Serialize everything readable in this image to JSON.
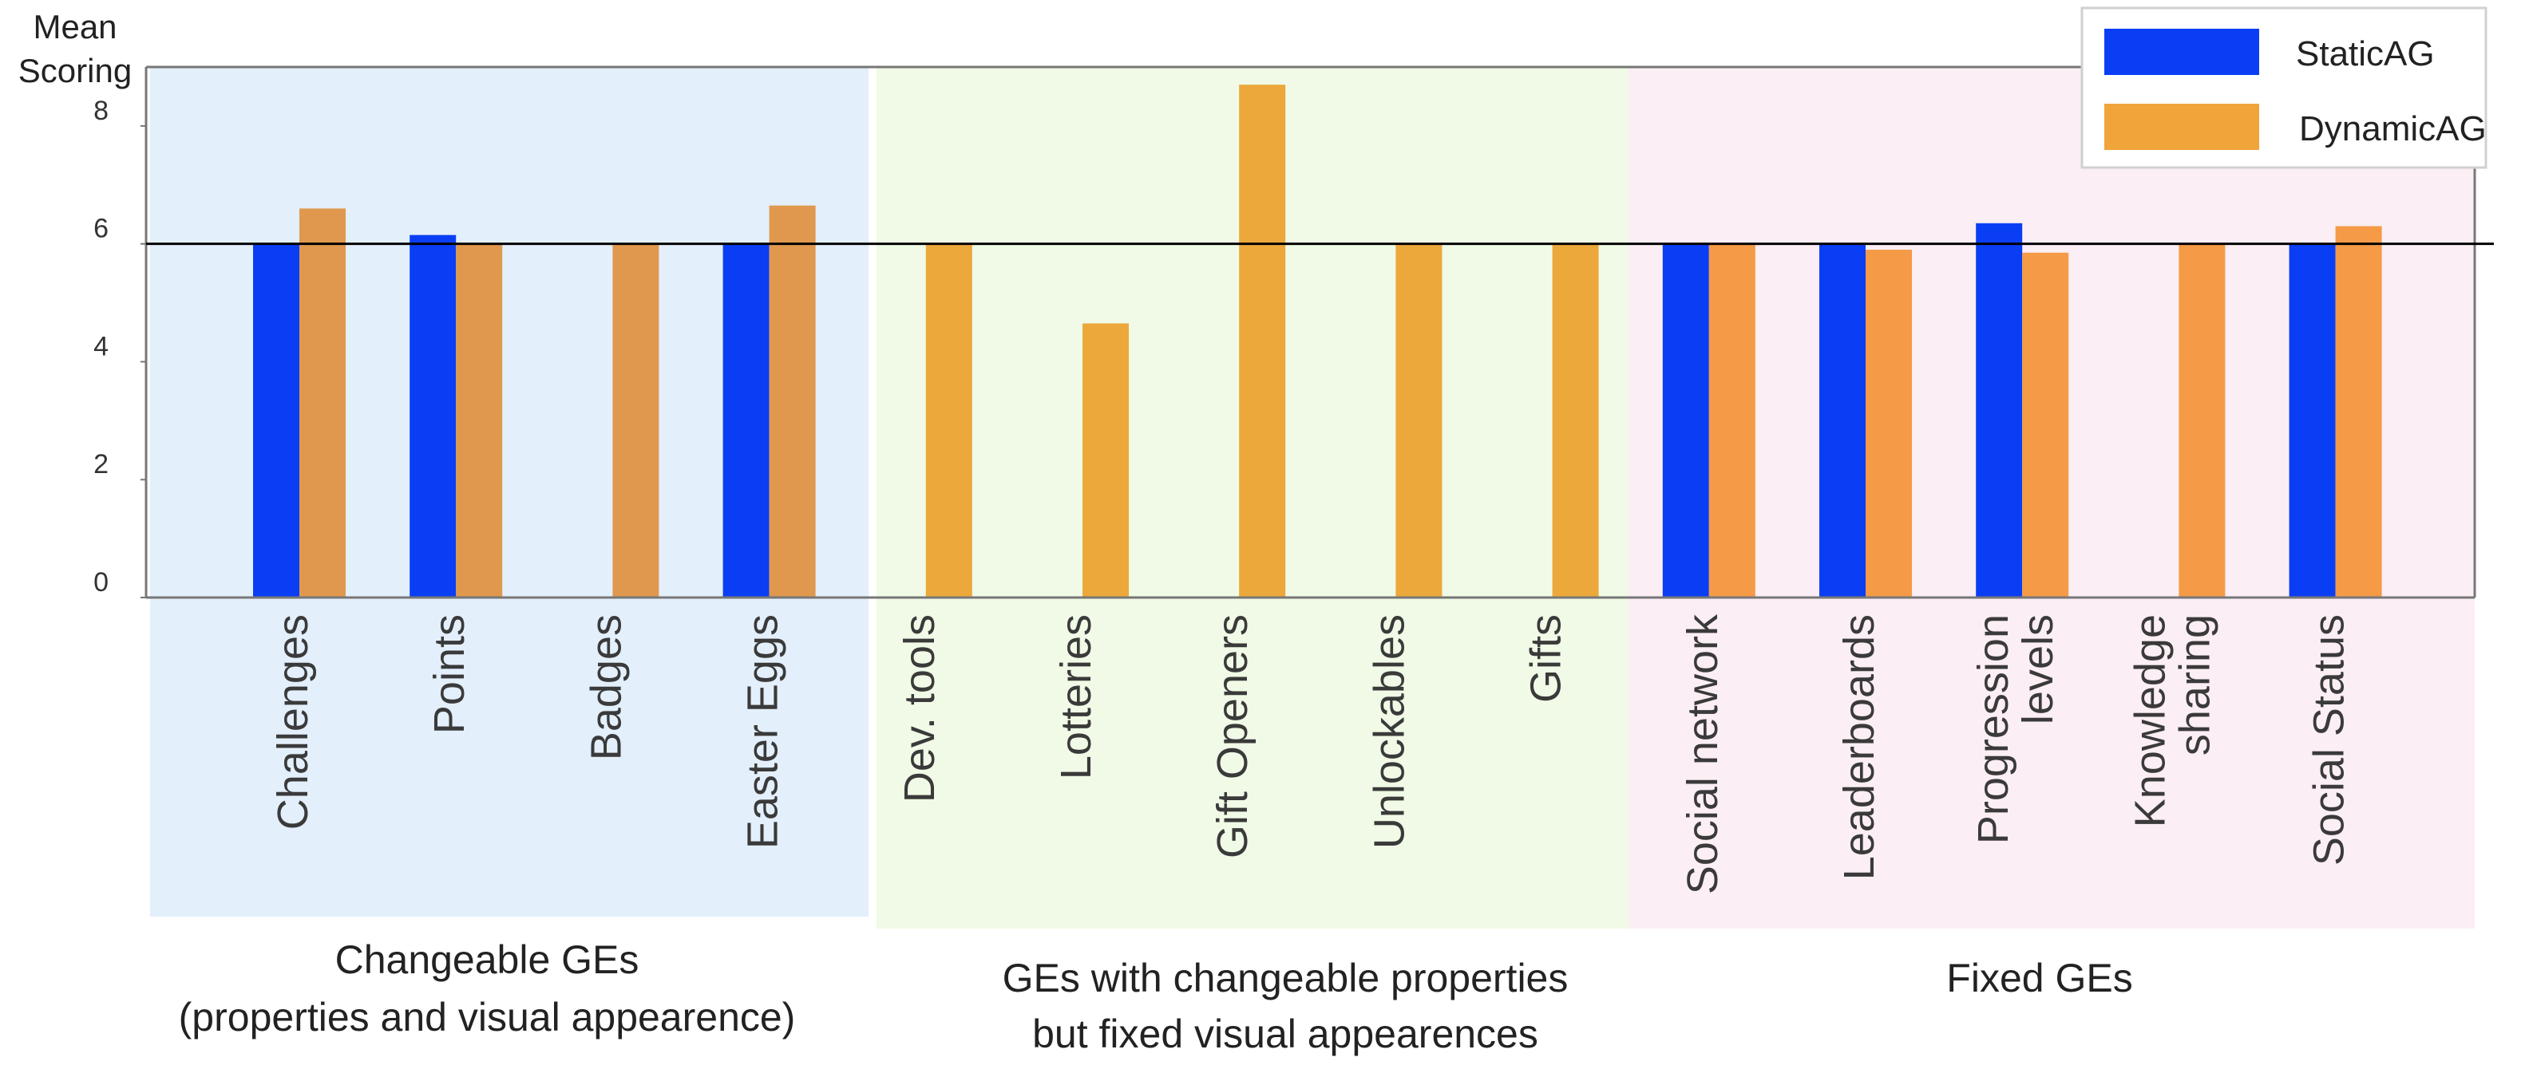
{
  "chart_data": {
    "type": "bar",
    "ylabel": "Mean Scoring",
    "ylabel_lines": [
      "Mean",
      "Scoring"
    ],
    "ylim": [
      0,
      9
    ],
    "yticks": [
      0,
      2,
      4,
      6,
      8
    ],
    "reference_line": 6,
    "grid": false,
    "legend_position": "top-right",
    "categories": [
      "Challenges",
      "Points",
      "Badges",
      "Easter Eggs",
      "Dev. tools",
      "Lotteries",
      "Gift Openers",
      "Unlockables",
      "Gifts",
      "Social network",
      "Leaderboards",
      "Progression levels",
      "Knowledge sharing",
      "Social Status"
    ],
    "category_label_lines": [
      [
        "Challenges"
      ],
      [
        "Points"
      ],
      [
        "Badges"
      ],
      [
        "Easter Eggs"
      ],
      [
        "Dev. tools"
      ],
      [
        "Lotteries"
      ],
      [
        "Gift Openers"
      ],
      [
        "Unlockables"
      ],
      [
        "Gifts"
      ],
      [
        "Social network"
      ],
      [
        "Leaderboards"
      ],
      [
        "Progression",
        "levels"
      ],
      [
        "Knowledge",
        "sharing"
      ],
      [
        "Social Status"
      ]
    ],
    "series": [
      {
        "name": "StaticAG",
        "color": "#0a3ef5",
        "values": [
          6.0,
          6.15,
          null,
          6.0,
          null,
          null,
          null,
          null,
          null,
          6.0,
          6.0,
          6.35,
          null,
          6.0
        ]
      },
      {
        "name": "DynamicAG",
        "color": "#f0a43a",
        "values": [
          6.6,
          6.0,
          6.0,
          6.65,
          6.0,
          4.65,
          8.7,
          6.0,
          6.0,
          6.0,
          5.9,
          5.85,
          6.0,
          6.3
        ]
      }
    ],
    "groups": [
      {
        "name": "Changeable GEs",
        "label_lines": [
          "Changeable GEs",
          "(properties and visual appearence)"
        ],
        "categories": [
          0,
          1,
          2,
          3
        ],
        "color": "#e3effb",
        "dynamic_color": "#e0984e"
      },
      {
        "name": "GEs with changeable properties but fixed visual appearences",
        "label_lines": [
          "GEs with changeable properties",
          "but fixed visual appearences"
        ],
        "categories": [
          4,
          5,
          6,
          7,
          8
        ],
        "color": "#f0fae6",
        "dynamic_color": "#eca83a"
      },
      {
        "name": "Fixed GEs",
        "label_lines": [
          "Fixed GEs"
        ],
        "categories": [
          9,
          10,
          11,
          12,
          13
        ],
        "color": "#fbeef4",
        "dynamic_color": "#f59a46"
      }
    ]
  }
}
